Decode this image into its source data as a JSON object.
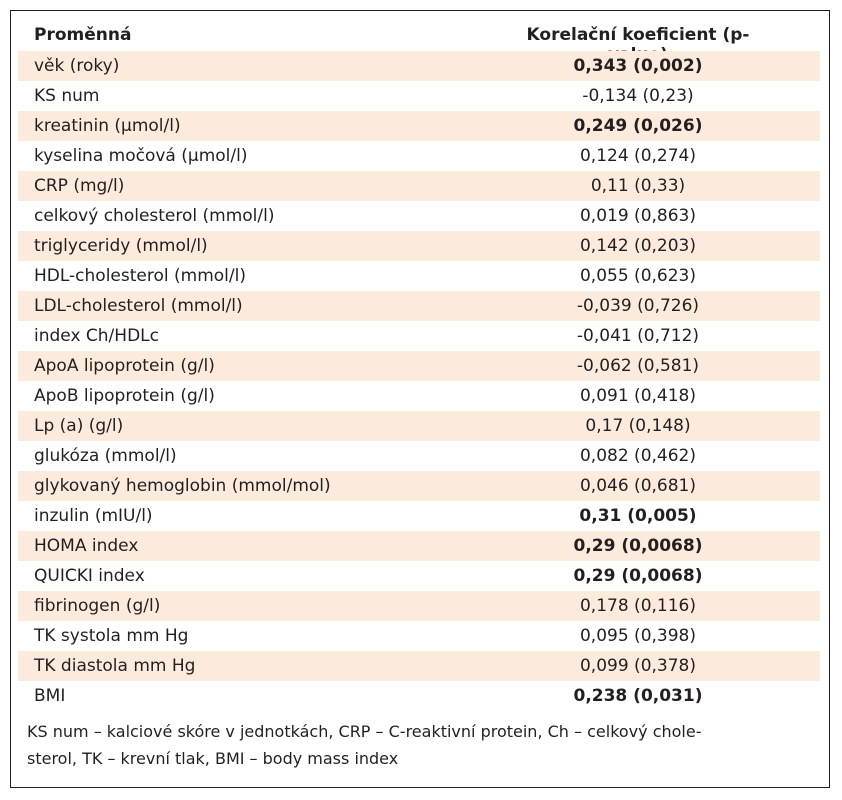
{
  "table": {
    "header": {
      "variable": "Proměnná",
      "coefficient": "Korelační koeficient (p-value)"
    },
    "rows": [
      {
        "variable": "věk (roky)",
        "value": "0,343 (0,002)",
        "bold": true
      },
      {
        "variable": "KS num",
        "value": "-0,134 (0,23)",
        "bold": false
      },
      {
        "variable": "kreatinin (µmol/l)",
        "value": "0,249 (0,026)",
        "bold": true
      },
      {
        "variable": "kyselina močová (µmol/l)",
        "value": "0,124 (0,274)",
        "bold": false
      },
      {
        "variable": "CRP (mg/l)",
        "value": "0,11 (0,33)",
        "bold": false
      },
      {
        "variable": "celkový cholesterol (mmol/l)",
        "value": "0,019 (0,863)",
        "bold": false
      },
      {
        "variable": "triglyceridy (mmol/l)",
        "value": "0,142 (0,203)",
        "bold": false
      },
      {
        "variable": "HDL-cholesterol (mmol/l)",
        "value": "0,055 (0,623)",
        "bold": false
      },
      {
        "variable": "LDL-cholesterol (mmol/l)",
        "value": "-0,039 (0,726)",
        "bold": false
      },
      {
        "variable": "index Ch/HDLc",
        "value": "-0,041 (0,712)",
        "bold": false
      },
      {
        "variable": "ApoA lipoprotein (g/l)",
        "value": "-0,062 (0,581)",
        "bold": false
      },
      {
        "variable": "ApoB lipoprotein (g/l)",
        "value": "0,091 (0,418)",
        "bold": false
      },
      {
        "variable": "Lp (a) (g/l)",
        "value": "0,17 (0,148)",
        "bold": false
      },
      {
        "variable": "glukóza (mmol/l)",
        "value": "0,082 (0,462)",
        "bold": false
      },
      {
        "variable": "glykovaný hemoglobin (mmol/mol)",
        "value": "0,046 (0,681)",
        "bold": false
      },
      {
        "variable": "inzulin (mIU/l)",
        "value": "0,31 (0,005)",
        "bold": true
      },
      {
        "variable": "HOMA index",
        "value": "0,29 (0,0068)",
        "bold": true
      },
      {
        "variable": "QUICKI index",
        "value": "0,29 (0,0068)",
        "bold": true
      },
      {
        "variable": "fibrinogen (g/l)",
        "value": "0,178 (0,116)",
        "bold": false
      },
      {
        "variable": "TK systola mm Hg",
        "value": "0,095 (0,398)",
        "bold": false
      },
      {
        "variable": "TK diastola mm Hg",
        "value": "0,099 (0,378)",
        "bold": false
      },
      {
        "variable": "BMI",
        "value": "0,238 (0,031)",
        "bold": true
      }
    ]
  },
  "footnote": {
    "line1": "KS num – kalciové skóre v jednotkách, CRP – C-reaktivní protein, Ch – celkový chole-",
    "line2": "sterol, TK – krevní tlak, BMI – body mass index"
  },
  "colors": {
    "row_shading": "#fcebdc",
    "text": "#231f20",
    "border": "#231f20"
  }
}
